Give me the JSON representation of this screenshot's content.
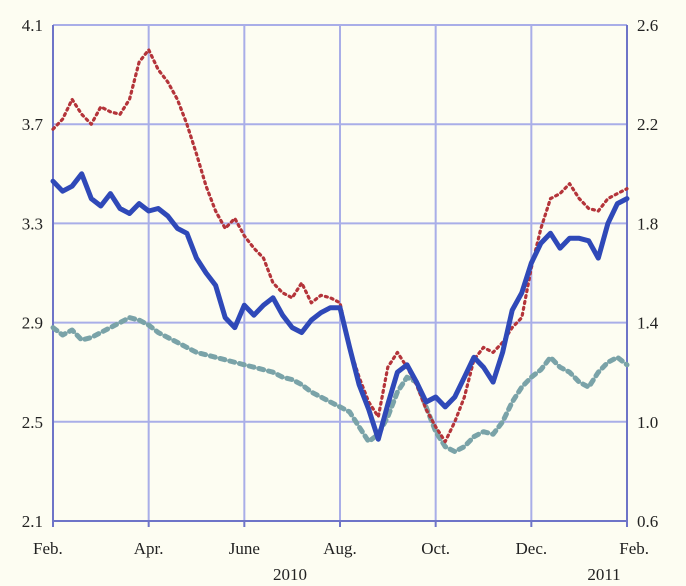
{
  "chart_data": {
    "type": "line",
    "grid": true,
    "y_left": {
      "ticks": [
        "2.1",
        "2.5",
        "2.9",
        "3.3",
        "3.7",
        "4.1"
      ],
      "ylim": [
        2.1,
        4.1
      ]
    },
    "y_right": {
      "ticks": [
        "0.6",
        "1.0",
        "1.4",
        "1.8",
        "2.2",
        "2.6"
      ],
      "ylim": [
        0.6,
        2.6
      ]
    },
    "x_ticks": [
      "Feb.",
      "Apr.",
      "June",
      "Aug.",
      "Oct.",
      "Dec.",
      "Feb."
    ],
    "year_labels": [
      "2010",
      "2011"
    ],
    "x_range": [
      0,
      12
    ],
    "colors": {
      "solid": "#2f49b8",
      "dotted": "#b4343a",
      "dashed": "#7aa3a8",
      "grid": "#a9aee8",
      "axis": "#6e74c8"
    },
    "series": [
      {
        "style": "solid",
        "axis": "left",
        "x": [
          0,
          0.2,
          0.4,
          0.6,
          0.8,
          1,
          1.2,
          1.4,
          1.6,
          1.8,
          2,
          2.2,
          2.4,
          2.6,
          2.8,
          3,
          3.2,
          3.4,
          3.6,
          3.8,
          4,
          4.2,
          4.4,
          4.6,
          4.8,
          5,
          5.2,
          5.4,
          5.6,
          5.8,
          6,
          6.2,
          6.4,
          6.6,
          6.8,
          7,
          7.2,
          7.4,
          7.6,
          7.8,
          8,
          8.2,
          8.4,
          8.6,
          8.8,
          9,
          9.2,
          9.4,
          9.6,
          9.8,
          10,
          10.2,
          10.4,
          10.6,
          10.8,
          11,
          11.2,
          11.4,
          11.6,
          11.8,
          12
        ],
        "y": [
          3.47,
          3.43,
          3.45,
          3.5,
          3.4,
          3.37,
          3.42,
          3.36,
          3.34,
          3.38,
          3.35,
          3.36,
          3.33,
          3.28,
          3.26,
          3.16,
          3.1,
          3.05,
          2.92,
          2.88,
          2.97,
          2.93,
          2.97,
          3.0,
          2.93,
          2.88,
          2.86,
          2.91,
          2.94,
          2.96,
          2.96,
          2.8,
          2.65,
          2.55,
          2.43,
          2.57,
          2.7,
          2.73,
          2.66,
          2.58,
          2.6,
          2.56,
          2.6,
          2.68,
          2.76,
          2.72,
          2.66,
          2.78,
          2.95,
          3.02,
          3.14,
          3.22,
          3.26,
          3.2,
          3.24,
          3.24,
          3.23,
          3.16,
          3.3,
          3.38,
          3.4
        ]
      },
      {
        "style": "dotted",
        "axis": "left",
        "x": [
          0,
          0.2,
          0.4,
          0.6,
          0.8,
          1,
          1.2,
          1.4,
          1.6,
          1.8,
          2,
          2.2,
          2.4,
          2.6,
          2.8,
          3,
          3.2,
          3.4,
          3.6,
          3.8,
          4,
          4.2,
          4.4,
          4.6,
          4.8,
          5,
          5.2,
          5.4,
          5.6,
          5.8,
          6,
          6.2,
          6.4,
          6.6,
          6.8,
          7,
          7.2,
          7.4,
          7.6,
          7.8,
          8,
          8.2,
          8.4,
          8.6,
          8.8,
          9,
          9.2,
          9.4,
          9.6,
          9.8,
          10,
          10.2,
          10.4,
          10.6,
          10.8,
          11,
          11.2,
          11.4,
          11.6,
          11.8,
          12
        ],
        "y": [
          3.68,
          3.72,
          3.8,
          3.74,
          3.7,
          3.77,
          3.75,
          3.74,
          3.8,
          3.95,
          4.0,
          3.92,
          3.87,
          3.8,
          3.7,
          3.58,
          3.45,
          3.35,
          3.28,
          3.32,
          3.25,
          3.2,
          3.16,
          3.06,
          3.02,
          3.0,
          3.06,
          2.98,
          3.01,
          3.0,
          2.98,
          2.8,
          2.68,
          2.58,
          2.52,
          2.72,
          2.78,
          2.72,
          2.65,
          2.55,
          2.48,
          2.42,
          2.5,
          2.6,
          2.75,
          2.8,
          2.78,
          2.82,
          2.88,
          2.92,
          3.12,
          3.28,
          3.4,
          3.42,
          3.46,
          3.4,
          3.36,
          3.35,
          3.4,
          3.42,
          3.44
        ]
      },
      {
        "style": "dashed",
        "axis": "left",
        "x": [
          0,
          0.2,
          0.4,
          0.6,
          0.8,
          1,
          1.2,
          1.4,
          1.6,
          1.8,
          2,
          2.2,
          2.4,
          2.6,
          2.8,
          3,
          3.2,
          3.4,
          3.6,
          3.8,
          4,
          4.2,
          4.4,
          4.6,
          4.8,
          5,
          5.2,
          5.4,
          5.6,
          5.8,
          6,
          6.2,
          6.4,
          6.6,
          6.8,
          7,
          7.2,
          7.4,
          7.6,
          7.8,
          8,
          8.2,
          8.4,
          8.6,
          8.8,
          9,
          9.2,
          9.4,
          9.6,
          9.8,
          10,
          10.2,
          10.4,
          10.6,
          10.8,
          11,
          11.2,
          11.4,
          11.6,
          11.8,
          12
        ],
        "y": [
          2.88,
          2.85,
          2.87,
          2.83,
          2.84,
          2.86,
          2.88,
          2.9,
          2.92,
          2.91,
          2.89,
          2.86,
          2.84,
          2.82,
          2.8,
          2.78,
          2.77,
          2.76,
          2.75,
          2.74,
          2.73,
          2.72,
          2.71,
          2.7,
          2.68,
          2.67,
          2.65,
          2.62,
          2.6,
          2.58,
          2.56,
          2.54,
          2.48,
          2.42,
          2.45,
          2.52,
          2.62,
          2.68,
          2.66,
          2.56,
          2.46,
          2.4,
          2.38,
          2.4,
          2.44,
          2.46,
          2.45,
          2.5,
          2.58,
          2.64,
          2.68,
          2.71,
          2.76,
          2.72,
          2.7,
          2.66,
          2.64,
          2.7,
          2.74,
          2.76,
          2.73
        ]
      }
    ]
  }
}
